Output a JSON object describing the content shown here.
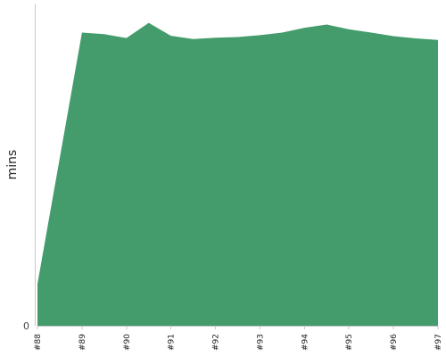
{
  "chart_data": {
    "type": "area",
    "categories": [
      "#88",
      "#89",
      "#90",
      "#91",
      "#92",
      "#93",
      "#94",
      "#95",
      "#96",
      "#97"
    ],
    "x": [
      0,
      1,
      1.5,
      2,
      2.5,
      3,
      3.5,
      4,
      4.5,
      5,
      5.5,
      6,
      6.5,
      7,
      7.5,
      8,
      8.5,
      9
    ],
    "values": [
      13,
      91,
      90.5,
      89.3,
      94,
      90,
      89,
      89.4,
      89.6,
      90.2,
      91,
      92.5,
      93.5,
      92,
      91,
      89.9,
      89.2,
      88.7
    ],
    "ylabel": "mins",
    "ylim": [
      0,
      100
    ],
    "y_ticks": [
      {
        "value": 0,
        "label": "0"
      }
    ],
    "grid": false,
    "legend": "none",
    "color": "#449c6c"
  }
}
